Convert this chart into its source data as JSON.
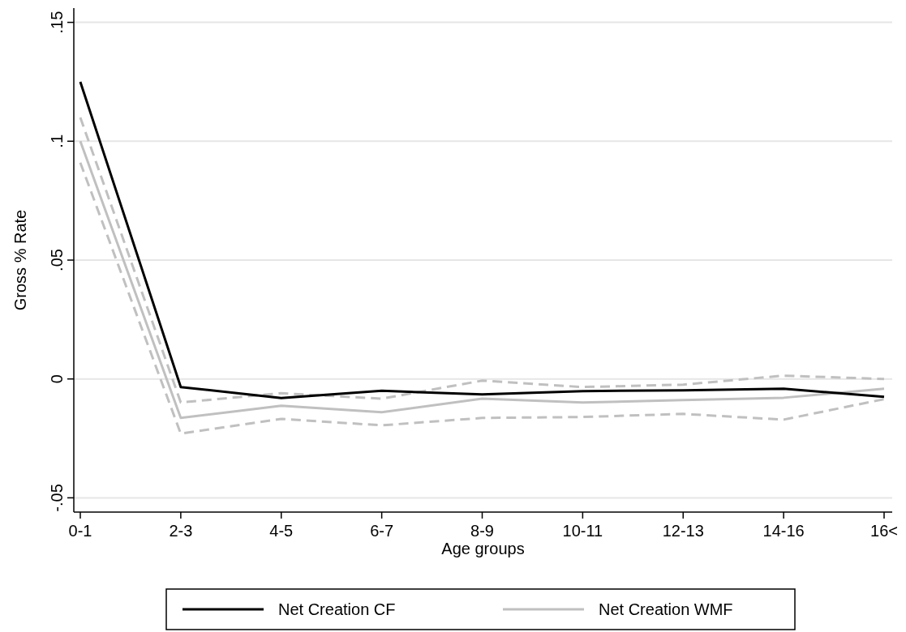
{
  "chart_data": {
    "type": "line",
    "xlabel": "Age groups",
    "ylabel": "Gross % Rate",
    "categories": [
      "0-1",
      "2-3",
      "4-5",
      "6-7",
      "8-9",
      "10-11",
      "12-13",
      "14-16",
      "16<"
    ],
    "series": [
      {
        "name": "Net Creation CF",
        "color": "#000000",
        "values": [
          0.125,
          -0.0034,
          -0.008,
          -0.005,
          -0.0065,
          -0.0051,
          -0.0048,
          -0.0041,
          -0.0075
        ]
      },
      {
        "name": "Net Creation WMF",
        "color": "#c0c0c0",
        "values": [
          0.1,
          -0.0164,
          -0.0113,
          -0.014,
          -0.0083,
          -0.0099,
          -0.0089,
          -0.0079,
          -0.0041
        ]
      },
      {
        "color": "#c0c0c0",
        "line_style": "dashed",
        "values": [
          0.11,
          -0.0099,
          -0.006,
          -0.0083,
          -0.0007,
          -0.0034,
          -0.0024,
          0.0014,
          0
        ]
      },
      {
        "color": "#c0c0c0",
        "line_style": "dashed",
        "values": [
          0.091,
          -0.023,
          -0.0168,
          -0.0195,
          -0.0164,
          -0.016,
          -0.0147,
          -0.0171,
          -0.0085
        ]
      }
    ],
    "ylim": [
      -0.056,
      0.156
    ],
    "yticks": [
      {
        "value": -0.05,
        "label": "-.05"
      },
      {
        "value": 0,
        "label": "0"
      },
      {
        "value": 0.05,
        "label": ".05"
      },
      {
        "value": 0.1,
        "label": ".1"
      },
      {
        "value": 0.15,
        "label": ".15"
      }
    ],
    "grid": "y",
    "legend": "bottom",
    "marker": "none",
    "line_style": "solid"
  }
}
